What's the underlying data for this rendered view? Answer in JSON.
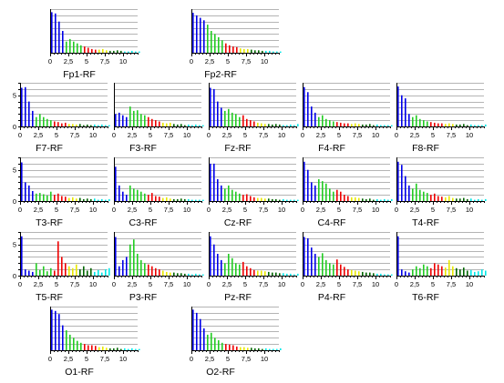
{
  "colors": {
    "delta": "#0000e8",
    "theta": "#22cc22",
    "alpha": "#ee0000",
    "beta1": "#e8e800",
    "beta2": "#006600",
    "beta3": "#00e8e8",
    "grid": "#b4b4b4",
    "axis": "#000000"
  },
  "chart_data": {
    "type": "bar",
    "description_units": "x = frequency bins (0 to 12, step 0.5), y = amplitude",
    "xlim": [
      0,
      12
    ],
    "ylim": [
      0,
      7
    ],
    "x_ticks": [
      0,
      2.5,
      5,
      7.5,
      10
    ],
    "x_tick_labels": [
      "0",
      "2,5",
      "5",
      "7,5",
      "10"
    ],
    "y_ticks": [
      0,
      5
    ],
    "y_tick_labels": [
      "0",
      "5"
    ],
    "grid": true,
    "bands": [
      {
        "name": "delta",
        "from": 0,
        "to": 1.5
      },
      {
        "name": "theta",
        "from": 2,
        "to": 4
      },
      {
        "name": "alpha",
        "from": 4.5,
        "to": 6
      },
      {
        "name": "beta1",
        "from": 6.5,
        "to": 7.5
      },
      {
        "name": "beta2",
        "from": 8,
        "to": 9.5
      },
      {
        "name": "beta3",
        "from": 10,
        "to": 12
      }
    ],
    "panels": [
      {
        "label": "Fp1-RF",
        "values": [
          6.5,
          6.3,
          5.0,
          3.5,
          1.8,
          2.2,
          1.8,
          1.5,
          1.2,
          1.0,
          0.8,
          0.6,
          0.5,
          0.5,
          0.6,
          0.4,
          0.3,
          0.3,
          0.4,
          0.3,
          0.2,
          0.2,
          0.3,
          0.2,
          0.2
        ]
      },
      {
        "label": "Fp2-RF",
        "values": [
          6.4,
          6.0,
          5.6,
          5.2,
          4.5,
          3.5,
          3.0,
          2.5,
          2.0,
          1.5,
          1.2,
          1.0,
          0.9,
          0.7,
          0.6,
          0.6,
          0.5,
          0.4,
          0.4,
          0.3,
          0.3,
          0.3,
          0.2,
          0.2,
          0.2
        ]
      },
      {
        "label": "F7-RF",
        "values": [
          6.2,
          6.3,
          4.0,
          2.5,
          1.5,
          2.0,
          1.5,
          1.2,
          1.0,
          0.8,
          0.7,
          0.5,
          0.6,
          0.4,
          0.4,
          0.3,
          0.4,
          0.2,
          0.3,
          0.2,
          0.3,
          0.2,
          0.3,
          0.2,
          0.2
        ]
      },
      {
        "label": "F3-RF",
        "values": [
          2.0,
          2.2,
          1.8,
          1.5,
          3.2,
          2.5,
          2.6,
          2.0,
          1.8,
          1.5,
          1.2,
          1.0,
          0.8,
          0.6,
          0.5,
          0.6,
          0.4,
          0.3,
          0.4,
          0.2,
          0.3,
          0.2,
          0.3,
          0.2,
          0.2
        ]
      },
      {
        "label": "Fz-RF",
        "values": [
          6.2,
          6.0,
          4.0,
          3.0,
          2.5,
          2.8,
          2.2,
          2.0,
          1.5,
          1.8,
          1.2,
          1.0,
          0.8,
          0.6,
          0.5,
          0.4,
          0.4,
          0.3,
          0.4,
          0.3,
          0.2,
          0.2,
          0.3,
          0.2,
          0.4
        ]
      },
      {
        "label": "F4-RF",
        "values": [
          6.3,
          5.5,
          3.2,
          2.2,
          1.5,
          1.8,
          1.2,
          1.0,
          0.8,
          0.7,
          0.6,
          0.5,
          0.5,
          0.4,
          0.5,
          0.4,
          0.3,
          0.3,
          0.4,
          0.2,
          0.3,
          0.2,
          0.2,
          0.2,
          0.2
        ]
      },
      {
        "label": "F8-RF",
        "values": [
          6.4,
          5.0,
          4.5,
          2.0,
          1.5,
          1.8,
          1.2,
          1.0,
          0.8,
          0.7,
          0.6,
          0.5,
          0.5,
          0.4,
          0.5,
          0.4,
          0.3,
          0.3,
          0.4,
          0.2,
          0.3,
          0.2,
          0.2,
          0.2,
          0.3
        ]
      },
      {
        "label": "T3-RF",
        "values": [
          6.2,
          3.0,
          2.5,
          1.6,
          1.2,
          1.3,
          1.1,
          0.9,
          1.5,
          1.0,
          1.2,
          0.8,
          0.7,
          0.5,
          0.6,
          0.4,
          0.5,
          0.3,
          0.4,
          0.3,
          0.4,
          0.2,
          0.3,
          0.2,
          0.3
        ]
      },
      {
        "label": "C3-RF",
        "values": [
          5.5,
          2.5,
          1.5,
          1.0,
          2.5,
          2.0,
          1.8,
          1.5,
          1.2,
          1.0,
          1.3,
          0.8,
          0.7,
          0.5,
          0.6,
          0.4,
          0.3,
          0.3,
          0.4,
          0.3,
          0.3,
          0.2,
          0.2,
          0.2,
          0.2
        ]
      },
      {
        "label": "Cz-RF",
        "values": [
          6.0,
          6.0,
          3.5,
          2.5,
          2.0,
          2.5,
          1.8,
          1.5,
          1.2,
          1.0,
          1.1,
          0.8,
          0.6,
          0.5,
          0.5,
          0.4,
          0.4,
          0.3,
          0.3,
          0.2,
          0.3,
          0.2,
          0.2,
          0.2,
          0.2
        ]
      },
      {
        "label": "C4-RF",
        "values": [
          6.3,
          5.0,
          3.0,
          2.5,
          3.5,
          3.2,
          2.8,
          2.0,
          1.5,
          1.8,
          1.5,
          1.0,
          0.8,
          0.6,
          0.6,
          0.5,
          0.4,
          0.3,
          0.4,
          0.2,
          0.3,
          0.2,
          0.3,
          0.2,
          0.3
        ]
      },
      {
        "label": "T4-RF",
        "values": [
          6.3,
          5.8,
          4.0,
          2.5,
          2.0,
          2.8,
          1.8,
          1.5,
          1.3,
          1.0,
          1.2,
          0.8,
          0.7,
          0.6,
          0.8,
          0.5,
          0.4,
          0.4,
          0.5,
          0.3,
          0.4,
          0.2,
          0.3,
          0.2,
          0.3
        ]
      },
      {
        "label": "T5-RF",
        "values": [
          6.3,
          1.0,
          0.8,
          0.6,
          2.0,
          0.9,
          1.5,
          0.7,
          1.2,
          0.8,
          5.5,
          3.0,
          2.0,
          1.5,
          1.2,
          1.8,
          1.0,
          1.5,
          0.8,
          1.2,
          0.6,
          0.9,
          0.5,
          1.0,
          1.2
        ]
      },
      {
        "label": "P3-RF",
        "values": [
          6.2,
          1.5,
          2.5,
          3.0,
          5.0,
          5.8,
          3.5,
          2.5,
          2.0,
          1.8,
          1.5,
          1.2,
          1.0,
          0.8,
          0.6,
          0.5,
          0.5,
          0.4,
          0.4,
          0.3,
          0.3,
          0.2,
          0.3,
          0.2,
          0.2
        ]
      },
      {
        "label": "Pz-RF",
        "values": [
          6.3,
          5.0,
          3.5,
          2.5,
          2.0,
          3.5,
          2.8,
          2.0,
          1.8,
          2.2,
          1.5,
          1.2,
          0.9,
          0.8,
          0.8,
          0.7,
          0.6,
          0.5,
          0.5,
          0.4,
          0.4,
          0.3,
          0.3,
          0.2,
          0.3
        ]
      },
      {
        "label": "P4-RF",
        "values": [
          6.2,
          6.0,
          4.5,
          3.5,
          3.0,
          3.6,
          2.5,
          2.0,
          1.8,
          2.6,
          1.8,
          1.4,
          1.0,
          0.9,
          0.8,
          0.7,
          0.6,
          0.5,
          0.5,
          0.4,
          0.3,
          0.3,
          0.2,
          0.2,
          0.2
        ]
      },
      {
        "label": "T6-RF",
        "values": [
          6.3,
          1.0,
          0.7,
          0.5,
          1.0,
          1.5,
          1.2,
          1.8,
          1.5,
          1.2,
          2.0,
          1.8,
          1.5,
          1.3,
          2.5,
          1.5,
          1.2,
          1.0,
          1.3,
          0.8,
          0.9,
          0.6,
          0.7,
          1.0,
          0.8
        ]
      },
      {
        "label": "O1-RF",
        "values": [
          6.5,
          6.3,
          5.8,
          4.0,
          3.2,
          2.5,
          2.0,
          1.5,
          1.2,
          1.0,
          0.8,
          0.8,
          0.7,
          0.5,
          0.6,
          0.4,
          0.3,
          0.3,
          0.4,
          0.2,
          0.3,
          0.2,
          0.3,
          0.2,
          0.2
        ]
      },
      {
        "label": "O2-RF",
        "values": [
          6.5,
          6.0,
          5.0,
          3.5,
          2.5,
          2.8,
          2.0,
          1.6,
          1.2,
          1.0,
          0.9,
          0.8,
          0.6,
          0.5,
          0.5,
          0.4,
          0.4,
          0.3,
          0.3,
          0.2,
          0.3,
          0.2,
          0.2,
          0.2,
          0.3
        ]
      }
    ]
  }
}
